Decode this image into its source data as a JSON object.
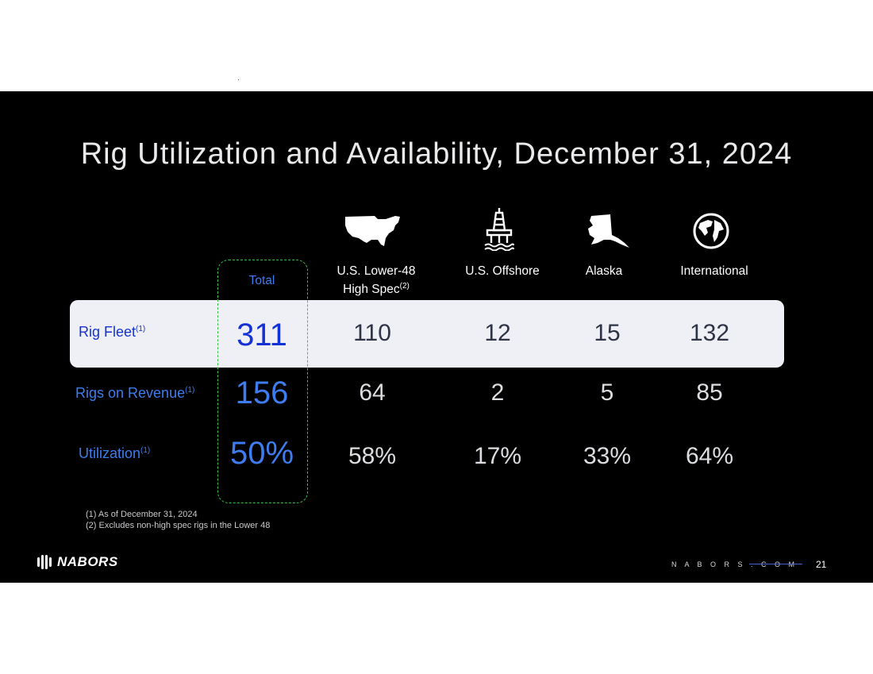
{
  "title": "Rig Utilization and Availability, December 31, 2024",
  "colors": {
    "blue_dark": "#1431d6",
    "blue_light": "#3d7df0",
    "band": "#eef0f5",
    "dash": "#39c24a",
    "background": "#000000"
  },
  "columns": {
    "total": "Total",
    "lower48_line1": "U.S. Lower-48",
    "lower48_line2": "High Spec",
    "lower48_sup": "(2)",
    "offshore": "U.S. Offshore",
    "alaska": "Alaska",
    "international": "International"
  },
  "icons": [
    "us-map-icon",
    "offshore-rig-icon",
    "alaska-map-icon",
    "globe-icon"
  ],
  "rows": {
    "fleet": {
      "label": "Rig Fleet",
      "sup": "(1)",
      "total": "311",
      "lower48": "110",
      "offshore": "12",
      "alaska": "15",
      "international": "132"
    },
    "revenue": {
      "label": "Rigs on Revenue",
      "sup": "(1)",
      "total": "156",
      "lower48": "64",
      "offshore": "2",
      "alaska": "5",
      "international": "85"
    },
    "utilization": {
      "label": "Utilization",
      "sup": "(1)",
      "total": "50%",
      "lower48": "58%",
      "offshore": "17%",
      "alaska": "33%",
      "international": "64%"
    }
  },
  "footnotes": {
    "n1": "(1)  As of December 31, 2024",
    "n2": "(2)  Excludes non-high spec rigs in the Lower 48"
  },
  "footer": {
    "logo": "NABORS",
    "url": "N A B O R S . C O M",
    "page": "21"
  }
}
